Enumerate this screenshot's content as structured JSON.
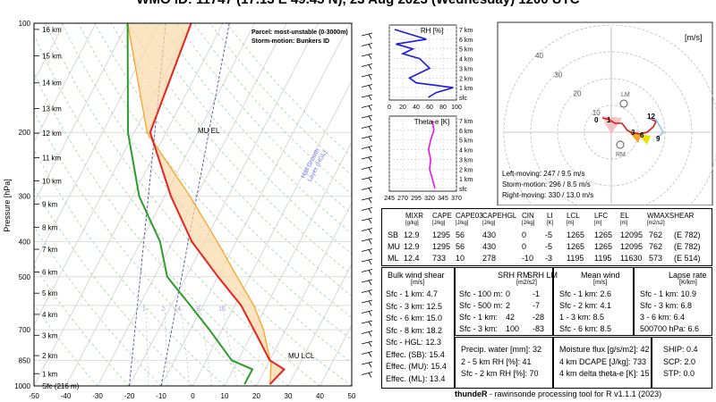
{
  "title": "WMO ID: 11747 (17.13 E 49.45 N), 23 Aug 2023 (Wednesday) 1200 UTC",
  "skewt": {
    "ylabel": "Pressure [hPa]",
    "pressure_ticks": [
      "100",
      "200",
      "300",
      "400",
      "500",
      "700",
      "850",
      "1000"
    ],
    "temp_ticks": [
      "-50",
      "-40",
      "-30",
      "-20",
      "-10",
      "0",
      "10",
      "20",
      "30",
      "40",
      "50"
    ],
    "height_labels": [
      "16 km",
      "15 km",
      "14 km",
      "13 km",
      "12 km",
      "11 km",
      "10 km",
      "9 km",
      "8 km",
      "7 km",
      "6 km",
      "5 km",
      "4 km",
      "3 km",
      "2 km",
      "1 km",
      "Sfc (216 m)"
    ],
    "legend_parcel": "Parcel: most-unstable (0-3000m)",
    "legend_storm": "Storm-motion: Bunkers ID",
    "mu_el": "MU EL",
    "mu_lcl": "MU LCL",
    "hail_label": "Hail Growth\nLayer (HGL)",
    "mixing_ratio_labels": [
      "1",
      "2",
      "4",
      "8",
      "16"
    ]
  },
  "rh_panel": {
    "title": "RH [%]",
    "x_ticks": [
      "0",
      "20",
      "40",
      "60",
      "80",
      "100"
    ],
    "levels": [
      "7 km",
      "6 km",
      "5 km",
      "4 km",
      "3 km",
      "2 km",
      "1 km",
      "sfc"
    ]
  },
  "thetae_panel": {
    "title": "Theta-e [K]",
    "x_ticks": [
      "245",
      "270",
      "295",
      "320",
      "345",
      "370"
    ],
    "levels": [
      "7 km",
      "6 km",
      "5 km",
      "4 km",
      "3 km",
      "2 km",
      "1 km",
      "sfc"
    ]
  },
  "hodograph": {
    "unit": "[m/s]",
    "ring_labels": [
      "10",
      "20",
      "30",
      "40"
    ],
    "lm": "LM",
    "rm": "RM",
    "point_labels": [
      "0",
      "1",
      "3",
      "6",
      "9",
      "12"
    ],
    "left_moving": "Left-moving: 247 / 9.5 m/s",
    "storm_motion": "Storm-motion: 296 / 8.5 m/s",
    "right_moving": "Right-moving: 330 / 13.0 m/s"
  },
  "parcel_table": {
    "headers": [
      "MIXR",
      "CAPE",
      "CAPE03",
      "CAPEHGL",
      "CIN",
      "LI",
      "LCL",
      "LFC",
      "EL",
      "WMAXSHEAR"
    ],
    "units": [
      "[g/kg]",
      "[J/kg]",
      "[J/kg]",
      "[J/kg]",
      "[J/kg]",
      "[K]",
      "[m]",
      "[m]",
      "[m]",
      "[m2/s2]"
    ],
    "rows": [
      {
        "name": "SB",
        "vals": [
          "12.9",
          "1295",
          "56",
          "430",
          "0",
          "-5",
          "1265",
          "1265",
          "12095",
          "762",
          "(E 782)"
        ]
      },
      {
        "name": "MU",
        "vals": [
          "12.9",
          "1295",
          "56",
          "430",
          "0",
          "-5",
          "1265",
          "1265",
          "12095",
          "762",
          "(E 782)"
        ]
      },
      {
        "name": "ML",
        "vals": [
          "12.4",
          "733",
          "10",
          "278",
          "-10",
          "-3",
          "1195",
          "1195",
          "11630",
          "573",
          "(E 514)"
        ]
      }
    ]
  },
  "bulk_shear": {
    "title": "Bulk wind shear",
    "unit": "[m/s]",
    "rows": [
      "Sfc - 1 km: 4.7",
      "Sfc - 3 km: 12.5",
      "Sfc - 6 km: 15.0",
      "Sfc - 8 km: 18.2",
      "Sfc - HGL: 12.3",
      "Effec. (SB): 15.4",
      "Effec. (MU): 15.4",
      "Effec. (ML): 13.4"
    ]
  },
  "srh": {
    "h1": "SRH RM",
    "h2": "SRH LM",
    "unit": "[m2/s2]",
    "rows": [
      [
        "Sfc - 100 m:",
        "0",
        "-1"
      ],
      [
        "Sfc - 500 m:",
        "2",
        "-7"
      ],
      [
        "Sfc - 1 km:",
        "42",
        "-28"
      ],
      [
        "Sfc - 3 km:",
        "100",
        "-83"
      ]
    ]
  },
  "mean_wind": {
    "title": "Mean wind",
    "unit": "[m/s]",
    "rows": [
      "Sfc - 1 km: 2.6",
      "Sfc - 2 km: 4.1",
      "1 - 3 km: 8.5",
      "Sfc - 6 km: 8.5"
    ]
  },
  "lapse_rate": {
    "title": "Lapse rate",
    "unit": "[K/km]",
    "rows": [
      "Sfc - 1 km: 10.9",
      "Sfc - 3 km: 6.8",
      "3 - 6 km: 6.4",
      "500700 hPa: 6.6"
    ]
  },
  "precip": {
    "rows": [
      "Precip. water [mm]: 32",
      "2 - 5 km RH [%]: 41",
      "Sfc - 2 km RH [%]: 70"
    ]
  },
  "moisture": {
    "rows": [
      "Moisture flux [g/s/m2]: 42",
      "4 km DCAPE [J/kg]: 733",
      "4 km delta theta-e [K]: 15"
    ]
  },
  "indices": {
    "rows": [
      "SHIP: 0.4",
      "SCP: 2.0",
      "STP: 0.0"
    ]
  },
  "footer": {
    "bold": "thundeR",
    "text": " - rawinsonde processing tool for R v1.1.1 (2023)"
  },
  "colors": {
    "temperature": "#e8231f",
    "dewpoint": "#2e9b2e",
    "parcel": "#f4a52b",
    "cape_fill": "#f8d9a8",
    "rh": "#1a1ae0",
    "thetae": "#e617e6"
  },
  "chart_data": [
    {
      "type": "line",
      "title": "",
      "xlabel": "",
      "ylabel": "Pressure [hPa]",
      "xlim": [
        -50,
        50
      ],
      "ylim": [
        1000,
        100
      ],
      "series": [
        {
          "name": "temperature",
          "x": [
            24,
            26,
            20,
            10,
            2,
            -10,
            -24,
            -38,
            -55,
            -60
          ],
          "y": [
            990,
            900,
            850,
            700,
            600,
            500,
            400,
            300,
            200,
            100
          ]
        },
        {
          "name": "dewpoint",
          "x": [
            16,
            16,
            8,
            -4,
            -14,
            -26,
            -34,
            -48,
            -62,
            -80
          ],
          "y": [
            990,
            900,
            850,
            700,
            600,
            500,
            400,
            300,
            200,
            100
          ]
        },
        {
          "name": "parcel",
          "x": [
            24,
            21,
            13,
            6,
            -4,
            -16,
            -32,
            -56,
            -80
          ],
          "y": [
            990,
            870,
            700,
            600,
            500,
            400,
            300,
            200,
            100
          ]
        }
      ]
    },
    {
      "type": "line",
      "title": "RH [%]",
      "xlim": [
        0,
        100
      ],
      "series": [
        {
          "name": "RH",
          "x": [
            58,
            70,
            95,
            40,
            30,
            60,
            45,
            20,
            35,
            10,
            55,
            8
          ],
          "y": [
            0,
            0.5,
            1,
            1.5,
            2,
            3,
            4,
            4.5,
            5,
            5.5,
            6,
            7
          ]
        }
      ]
    },
    {
      "type": "line",
      "title": "Theta-e [K]",
      "xlim": [
        245,
        370
      ],
      "series": [
        {
          "name": "Theta-e",
          "x": [
            330,
            325,
            320,
            322,
            318,
            322,
            328,
            325
          ],
          "y": [
            0,
            1,
            2,
            3,
            4,
            5,
            6,
            7
          ]
        }
      ]
    }
  ]
}
